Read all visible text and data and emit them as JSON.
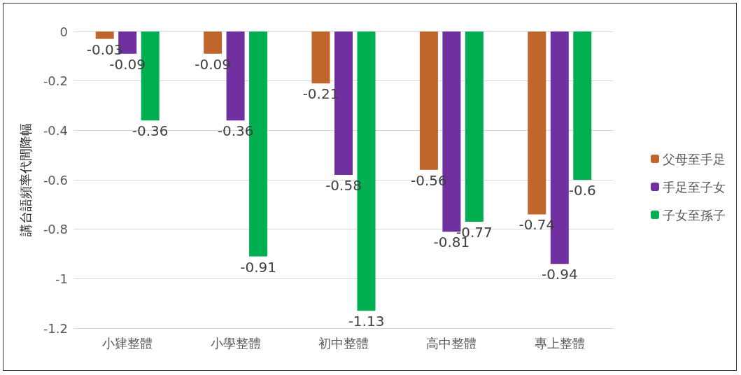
{
  "chart_data": {
    "type": "bar",
    "ylabel": "講台語頻率代間降幅",
    "categories": [
      "小肄整體",
      "小學整體",
      "初中整體",
      "高中整體",
      "專上整體"
    ],
    "series": [
      {
        "name": "父母至手足",
        "color": "#c0652b",
        "values": [
          -0.03,
          -0.09,
          -0.21,
          -0.56,
          -0.74
        ]
      },
      {
        "name": "手足至子女",
        "color": "#7030a0",
        "values": [
          -0.09,
          -0.36,
          -0.58,
          -0.81,
          -0.94
        ]
      },
      {
        "name": "子女至孫子",
        "color": "#00b050",
        "values": [
          -0.36,
          -0.91,
          -1.13,
          -0.77,
          -0.6
        ]
      }
    ],
    "ylim": [
      -1.2,
      0
    ],
    "yticks": [
      -1.2,
      -1,
      -0.8,
      -0.6,
      -0.4,
      -0.2,
      0
    ],
    "grid": "y",
    "legend": "right",
    "data_labels": true
  }
}
